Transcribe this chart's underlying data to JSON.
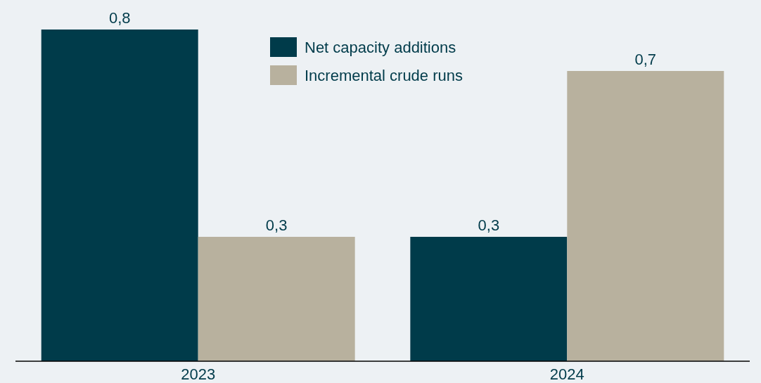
{
  "chart_data": {
    "type": "bar",
    "categories": [
      "2023",
      "2024"
    ],
    "series": [
      {
        "name": "Net capacity additions",
        "color": "#003b4a",
        "values": [
          0.8,
          0.3
        ],
        "value_labels": [
          "0,8",
          "0,3"
        ]
      },
      {
        "name": "Incremental crude runs",
        "color": "#b8b19e",
        "values": [
          0.3,
          0.7
        ],
        "value_labels": [
          "0,3",
          "0,7"
        ]
      }
    ],
    "legend": "top",
    "grid": false
  }
}
